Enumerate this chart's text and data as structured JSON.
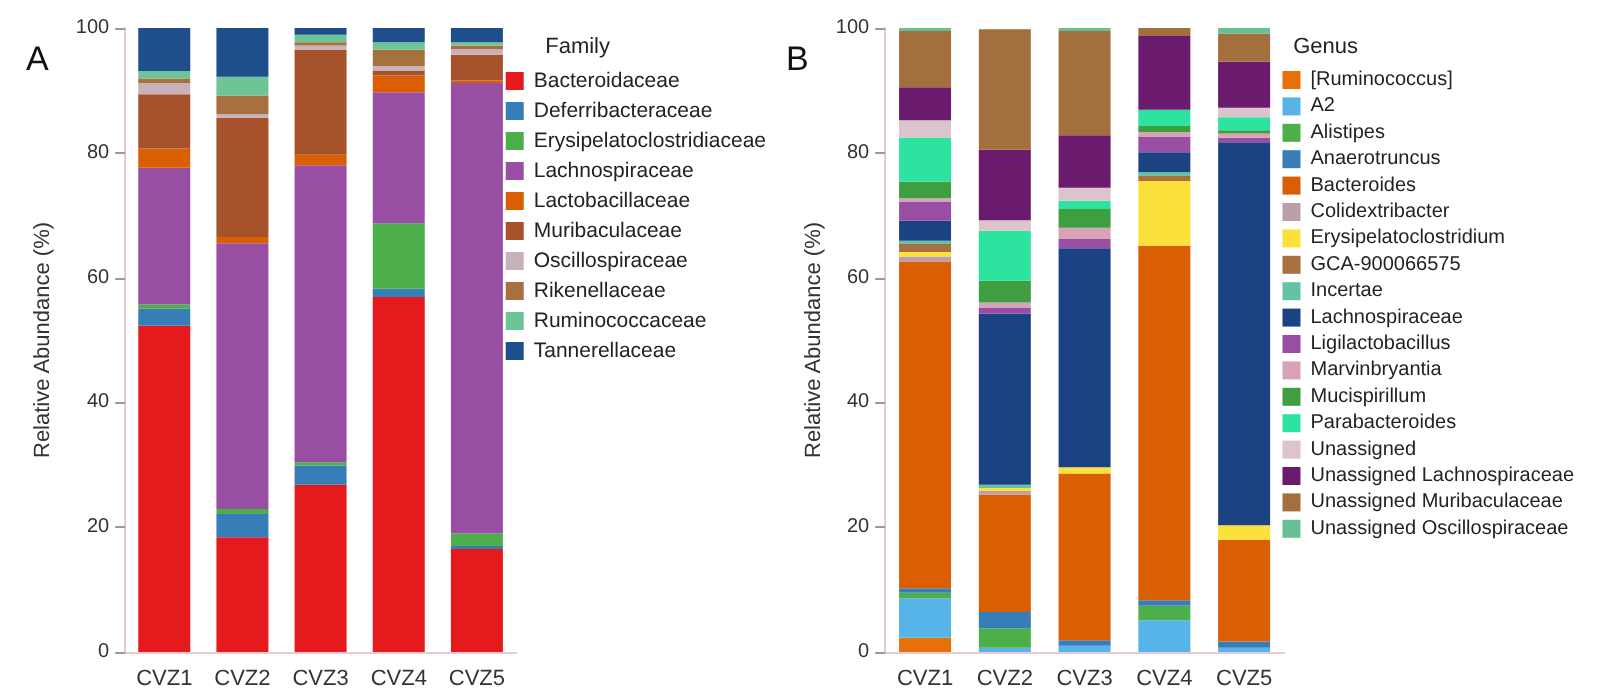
{
  "chart_data": [
    {
      "type": "bar",
      "title": "A",
      "ylabel": "Relative Abundance (%)",
      "legend_title": "Family",
      "categories": [
        "CVZ1",
        "CVZ2",
        "CVZ3",
        "CVZ4",
        "CVZ5"
      ],
      "stacked": true,
      "ylim": [
        0,
        100
      ],
      "yticks": [
        0,
        20,
        40,
        60,
        80,
        100
      ],
      "grid": false,
      "legend": "right",
      "series": [
        {
          "name": "Bacteroidaceae",
          "color": "#e41a1c",
          "values": [
            52.3,
            18.4,
            26.8,
            56.9,
            16.5
          ]
        },
        {
          "name": "Deferribacteraceae",
          "color": "#377eb8",
          "values": [
            2.7,
            3.7,
            3.1,
            1.3,
            0.5
          ]
        },
        {
          "name": "Erysipelatoclostridiaceae",
          "color": "#4daf4a",
          "values": [
            0.7,
            0.8,
            0.5,
            10.5,
            2.0
          ]
        },
        {
          "name": "Lachnospiraceae",
          "color": "#984ea3",
          "values": [
            21.9,
            42.6,
            47.6,
            21.0,
            72.2
          ]
        },
        {
          "name": "Lactobacillaceae",
          "color": "#d95f02",
          "values": [
            3.1,
            1.0,
            1.7,
            2.7,
            0.4
          ]
        },
        {
          "name": "Muribaculaceae",
          "color": "#a6522a",
          "values": [
            8.7,
            19.1,
            16.8,
            0.8,
            4.1
          ]
        },
        {
          "name": "Oscillospiraceae",
          "color": "#c9b1b9",
          "values": [
            1.8,
            0.6,
            0.7,
            0.7,
            0.9
          ]
        },
        {
          "name": "Rikenellaceae",
          "color": "#a6713f",
          "values": [
            0.7,
            3.0,
            0.5,
            2.6,
            0.6
          ]
        },
        {
          "name": "Ruminococcaceae",
          "color": "#6cc497",
          "values": [
            1.2,
            3.0,
            1.2,
            1.2,
            0.5
          ]
        },
        {
          "name": "Tannerellaceae",
          "color": "#1f4e8c",
          "values": [
            6.9,
            7.8,
            1.1,
            2.3,
            2.3
          ]
        }
      ]
    },
    {
      "type": "bar",
      "title": "B",
      "ylabel": "Relative Abundance (%)",
      "legend_title": "Genus",
      "categories": [
        "CVZ1",
        "CVZ2",
        "CVZ3",
        "CVZ4",
        "CVZ5"
      ],
      "stacked": true,
      "ylim": [
        0,
        100
      ],
      "yticks": [
        0,
        20,
        40,
        60,
        80,
        100
      ],
      "grid": false,
      "legend": "right",
      "series": [
        {
          "name": "[Ruminococcus]",
          "color": "#e8700a",
          "values": [
            2.3,
            0,
            0,
            0,
            0
          ]
        },
        {
          "name": "A2",
          "color": "#56b4e9",
          "values": [
            6.3,
            0.7,
            1.0,
            5.1,
            0.7
          ]
        },
        {
          "name": "Alistipes",
          "color": "#4daf4a",
          "values": [
            0.9,
            3.1,
            0,
            2.3,
            0
          ]
        },
        {
          "name": "Anaerotruncus",
          "color": "#377eb8",
          "values": [
            0.7,
            2.6,
            0.9,
            0.9,
            1.0
          ]
        },
        {
          "name": "Bacteroides",
          "color": "#d95f02",
          "values": [
            52.4,
            18.8,
            26.7,
            56.8,
            16.3
          ]
        },
        {
          "name": "Colidextribacter",
          "color": "#bd9eab",
          "values": [
            0.8,
            0.6,
            0,
            0,
            0
          ]
        },
        {
          "name": "Erysipelatoclostridium",
          "color": "#fde13b",
          "values": [
            0.7,
            0.5,
            1.0,
            10.4,
            2.3
          ]
        },
        {
          "name": "GCA-900066575",
          "color": "#a6713f",
          "values": [
            1.3,
            0,
            0,
            0.8,
            0
          ]
        },
        {
          "name": "Incertae",
          "color": "#66c2a5",
          "values": [
            0.5,
            0.5,
            0,
            0.6,
            0
          ]
        },
        {
          "name": "Lachnospiraceae",
          "color": "#1b4384",
          "values": [
            3.2,
            27.4,
            35.1,
            3.2,
            61.4
          ]
        },
        {
          "name": "Ligilactobacillus",
          "color": "#984ea3",
          "values": [
            3.1,
            1.0,
            1.5,
            2.5,
            0.7
          ]
        },
        {
          "name": "Marvinbryantia",
          "color": "#d9a3b6",
          "values": [
            0.5,
            0.8,
            1.8,
            0.7,
            0.7
          ]
        },
        {
          "name": "Mucispirillum",
          "color": "#3f9e40",
          "values": [
            2.7,
            3.5,
            3.0,
            1.0,
            0.5
          ]
        },
        {
          "name": "Parabacteroides",
          "color": "#2de3a0",
          "values": [
            7.0,
            8.0,
            1.3,
            2.6,
            2.1
          ]
        },
        {
          "name": "Unassigned",
          "color": "#dcc4cc",
          "values": [
            2.8,
            1.7,
            2.1,
            0,
            1.5
          ]
        },
        {
          "name": "Unassigned Lachnospiraceae",
          "color": "#6a1b6e",
          "values": [
            5.3,
            11.3,
            8.4,
            11.8,
            7.4
          ]
        },
        {
          "name": "Unassigned Muribaculaceae",
          "color": "#a26f3d",
          "values": [
            9.0,
            19.3,
            16.7,
            1.3,
            4.5
          ]
        },
        {
          "name": "Unassigned Oscillospiraceae",
          "color": "#66c094",
          "values": [
            0.5,
            0,
            0.5,
            0,
            0.9
          ]
        }
      ]
    }
  ]
}
